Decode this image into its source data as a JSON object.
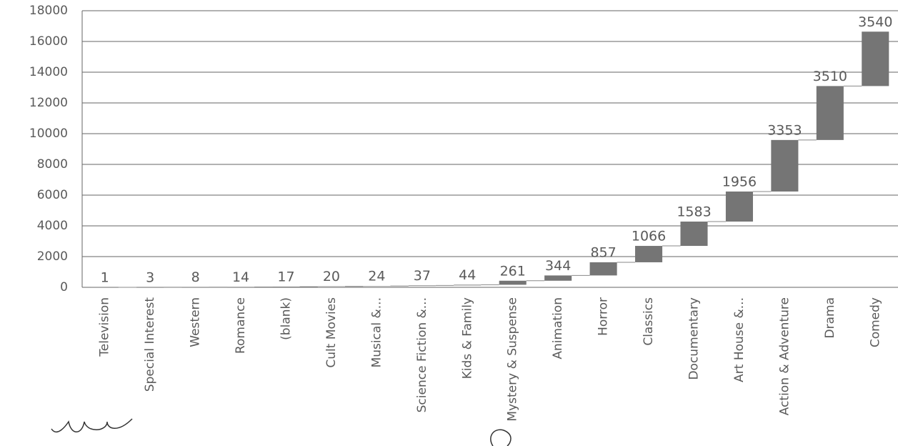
{
  "chart_data": {
    "type": "waterfall",
    "categories": [
      "Television",
      "Special Interest",
      "Western",
      "Romance",
      "(blank)",
      "Cult Movies",
      "Musical &...",
      "Science Fiction &...",
      "Kids & Family",
      "Mystery & Suspense",
      "Animation",
      "Horror",
      "Classics",
      "Documentary",
      "Art House &...",
      "Action & Adventure",
      "Drama",
      "Comedy"
    ],
    "values": [
      1,
      3,
      8,
      14,
      17,
      20,
      24,
      37,
      44,
      261,
      344,
      857,
      1066,
      1583,
      1956,
      3353,
      3510,
      3540
    ],
    "color": "#757575",
    "ylim": [
      0,
      18000
    ],
    "yticks": [
      0,
      2000,
      4000,
      6000,
      8000,
      10000,
      12000,
      14000,
      16000,
      18000
    ],
    "grid": true
  }
}
